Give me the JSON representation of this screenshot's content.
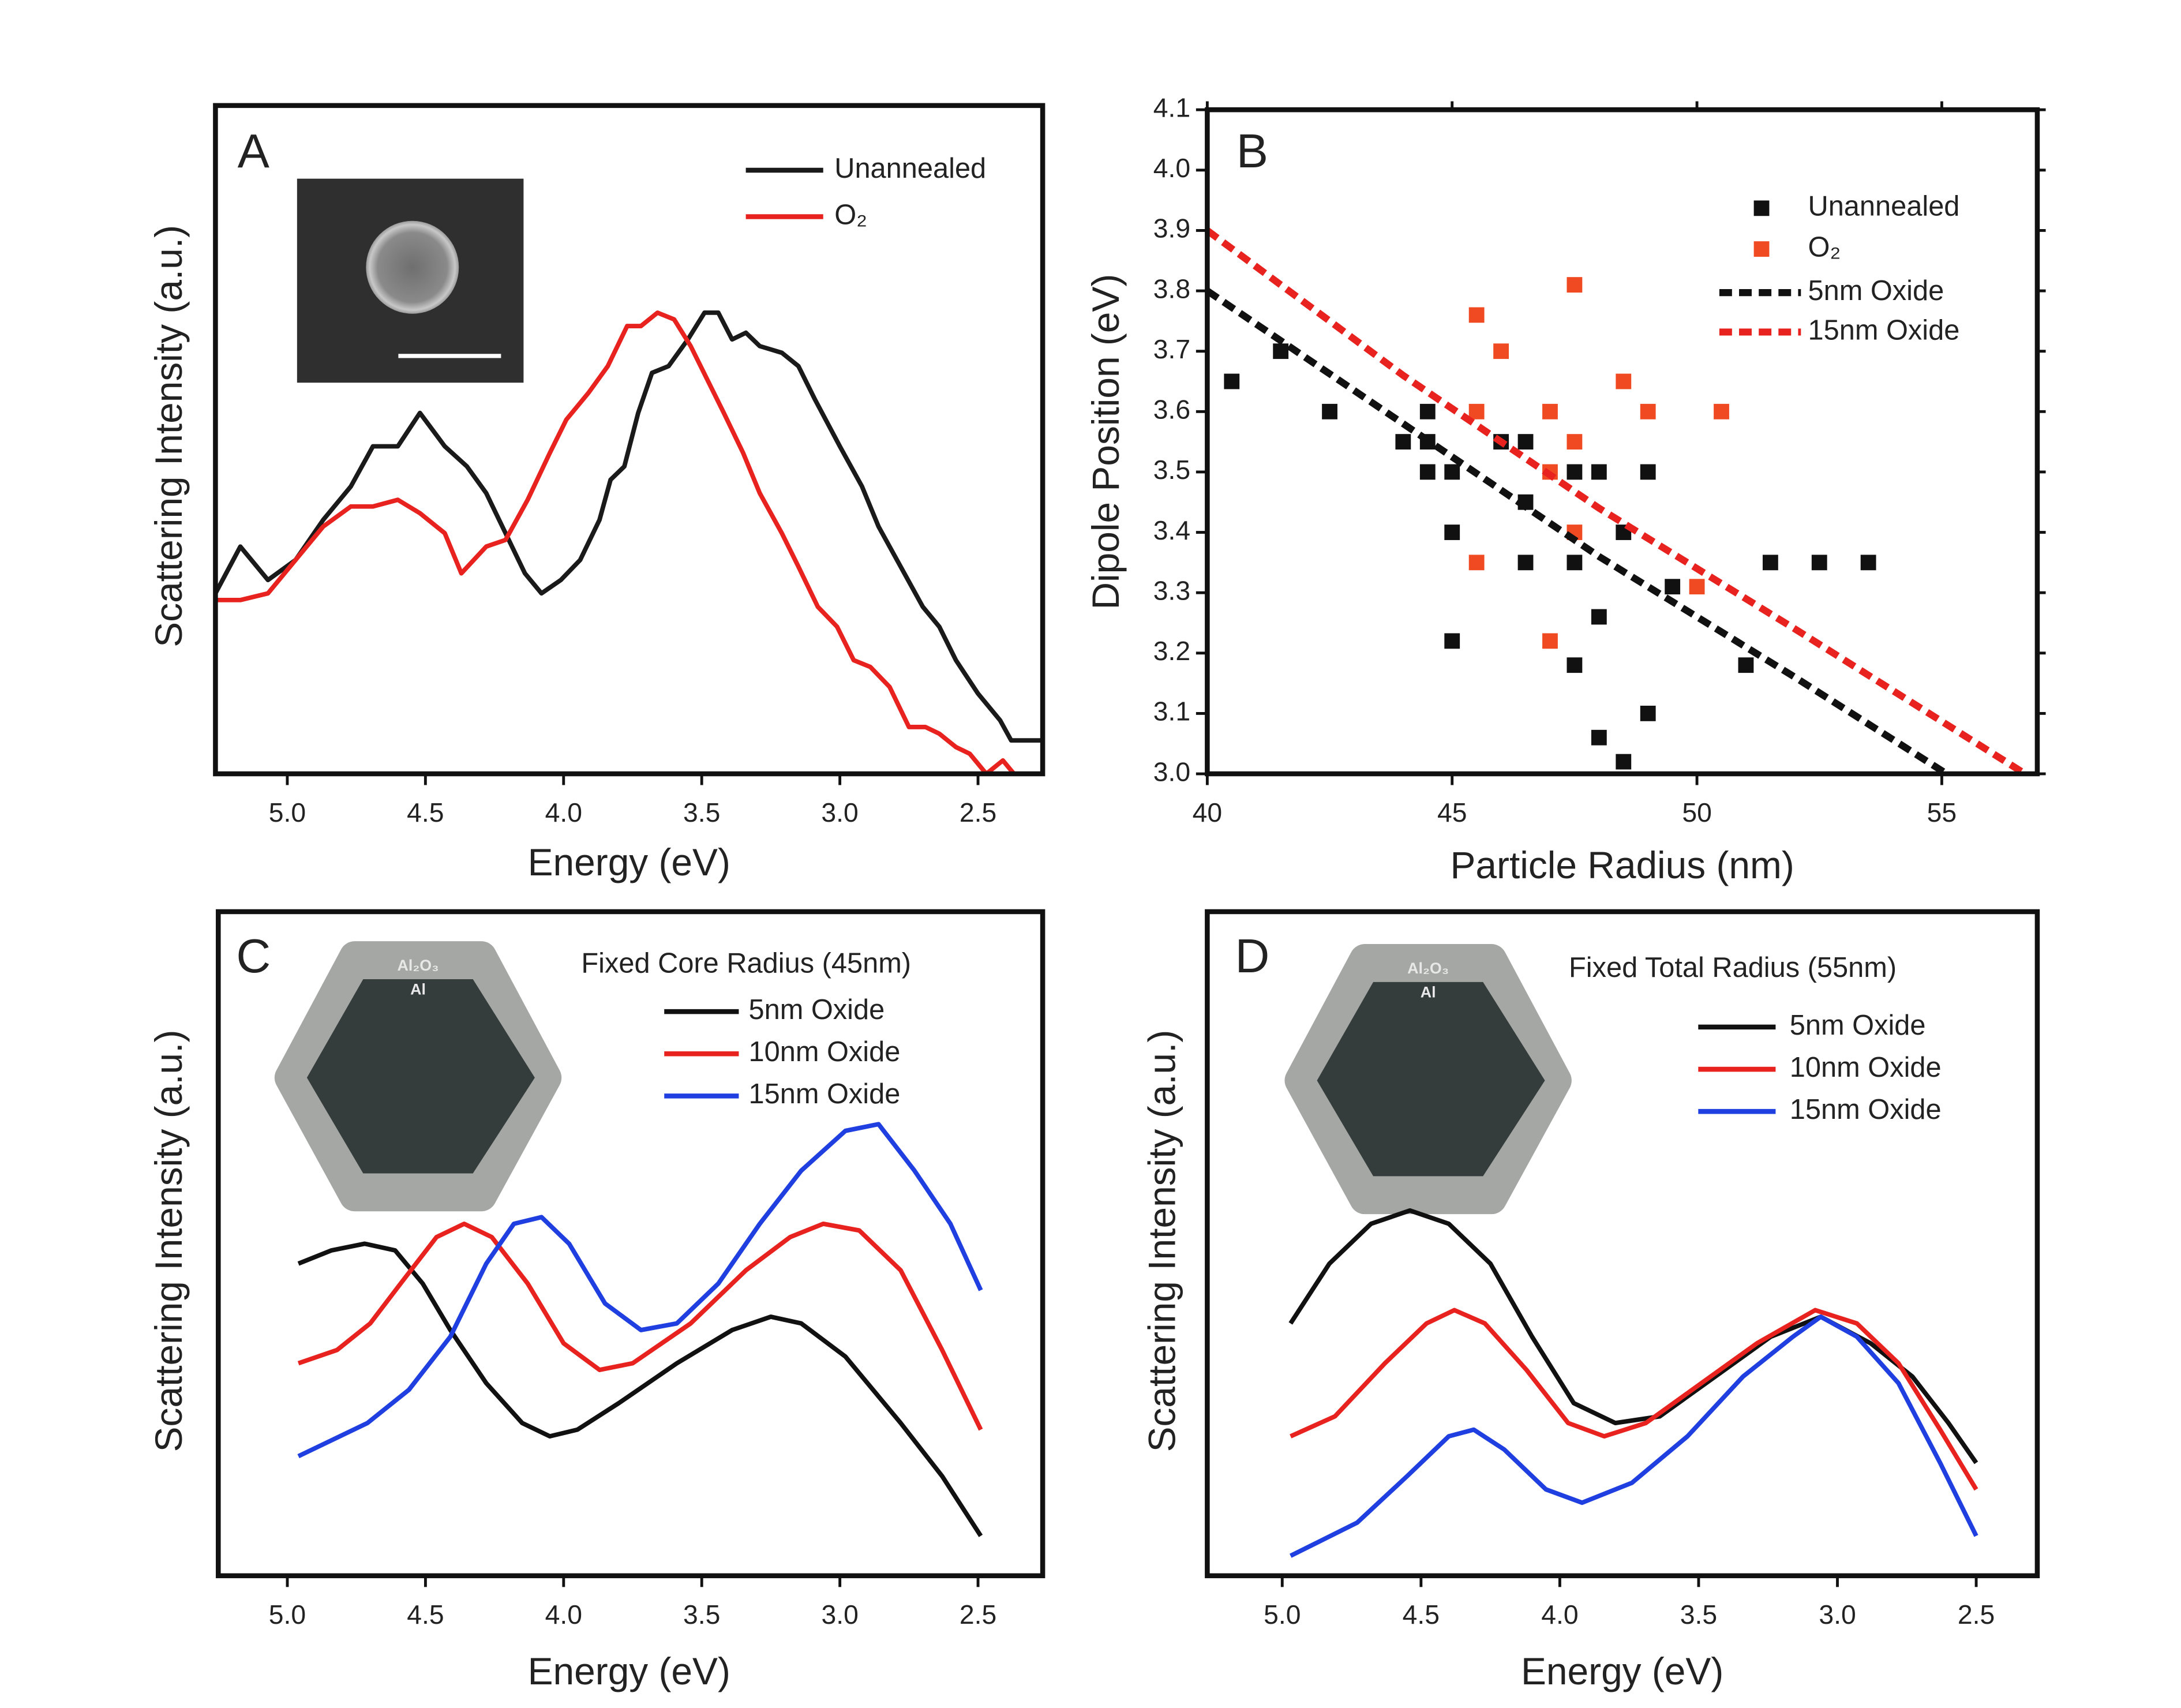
{
  "chart_data": [
    {
      "type": "line",
      "label": "A",
      "xlabel": "Energy (eV)",
      "ylabel": "Scattering Intensity (a.u.)",
      "xlim": [
        5.26,
        2.266
      ],
      "xticks": [
        {
          "value": 5,
          "label": "5.0"
        },
        4.5,
        {
          "value": 4,
          "label": "4.0"
        },
        3.5,
        {
          "value": 3,
          "label": "3.0"
        },
        2.5
      ],
      "ylim": [
        0,
        1
      ],
      "series": [
        {
          "name": "Unannealed",
          "color": "#1a1a1a",
          "x": [
            5.26,
            5.17,
            5.07,
            4.97,
            4.87,
            4.77,
            4.69,
            4.6,
            4.52,
            4.43,
            4.35,
            4.28,
            4.21,
            4.14,
            4.08,
            4.01,
            3.94,
            3.87,
            3.83,
            3.78,
            3.73,
            3.68,
            3.62,
            3.55,
            3.49,
            3.44,
            3.39,
            3.34,
            3.29,
            3.21,
            3.15,
            3.09,
            3.0,
            2.92,
            2.86,
            2.78,
            2.7,
            2.64,
            2.58,
            2.5,
            2.42,
            2.38,
            2.32,
            2.27
          ],
          "values": [
            0.27,
            0.34,
            0.29,
            0.32,
            0.38,
            0.43,
            0.49,
            0.49,
            0.54,
            0.49,
            0.46,
            0.42,
            0.36,
            0.3,
            0.27,
            0.29,
            0.32,
            0.38,
            0.44,
            0.46,
            0.54,
            0.6,
            0.61,
            0.65,
            0.69,
            0.69,
            0.65,
            0.66,
            0.64,
            0.63,
            0.61,
            0.56,
            0.49,
            0.43,
            0.37,
            0.31,
            0.25,
            0.22,
            0.17,
            0.12,
            0.08,
            0.05,
            0.05,
            0.05
          ]
        },
        {
          "name": "O₂",
          "color": "#e8231f",
          "x": [
            5.26,
            5.17,
            5.07,
            4.97,
            4.87,
            4.77,
            4.69,
            4.6,
            4.52,
            4.43,
            4.37,
            4.28,
            4.21,
            4.13,
            4.05,
            3.99,
            3.91,
            3.84,
            3.77,
            3.72,
            3.66,
            3.6,
            3.54,
            3.48,
            3.42,
            3.35,
            3.29,
            3.21,
            3.15,
            3.08,
            3.01,
            2.95,
            2.89,
            2.82,
            2.75,
            2.69,
            2.64,
            2.58,
            2.53,
            2.47,
            2.41,
            2.37
          ],
          "values": [
            0.26,
            0.26,
            0.27,
            0.32,
            0.37,
            0.4,
            0.4,
            0.41,
            0.39,
            0.36,
            0.3,
            0.34,
            0.35,
            0.41,
            0.48,
            0.53,
            0.57,
            0.61,
            0.67,
            0.67,
            0.69,
            0.68,
            0.64,
            0.59,
            0.54,
            0.48,
            0.42,
            0.36,
            0.31,
            0.25,
            0.22,
            0.17,
            0.16,
            0.13,
            0.07,
            0.07,
            0.06,
            0.04,
            0.03,
            0,
            0.02,
            0
          ]
        }
      ]
    },
    {
      "type": "scatter",
      "label": "B",
      "xlabel": "Particle Radius (nm)",
      "ylabel": "Dipole Position (eV)",
      "xlim": [
        40,
        56.95
      ],
      "xticks": [
        40,
        45,
        50,
        55
      ],
      "ylim": [
        3.0,
        4.1
      ],
      "yticks": [
        {
          "value": 3,
          "label": "3.0"
        },
        3.1,
        3.2,
        3.3,
        3.4,
        3.5,
        3.6,
        3.7,
        3.8,
        3.9,
        {
          "value": 4,
          "label": "4.0"
        },
        4.1
      ],
      "series": [
        {
          "name": "Unannealed",
          "color": "#111111",
          "x": [
            40.5,
            41.5,
            42.5,
            44,
            44.5,
            44.5,
            44.5,
            45,
            45,
            45,
            46,
            46.5,
            46.5,
            46.5,
            47.5,
            47.5,
            47.5,
            48,
            48,
            48,
            48.5,
            48.5,
            49,
            49,
            49.5,
            51,
            51.5,
            52.5,
            53.5
          ],
          "values": [
            3.65,
            3.7,
            3.6,
            3.55,
            3.6,
            3.55,
            3.5,
            3.5,
            3.4,
            3.22,
            3.55,
            3.55,
            3.45,
            3.35,
            3.5,
            3.35,
            3.18,
            3.5,
            3.26,
            3.06,
            3.02,
            3.4,
            3.5,
            3.1,
            3.31,
            3.18,
            3.35,
            3.35,
            3.35
          ]
        },
        {
          "name": "O₂",
          "color": "#f04a23",
          "x": [
            45.5,
            46,
            47.5,
            45.5,
            47,
            47.5,
            47,
            47.5,
            45.5,
            47,
            48.5,
            49,
            50.5,
            50
          ],
          "values": [
            3.76,
            3.7,
            3.81,
            3.6,
            3.6,
            3.55,
            3.5,
            3.4,
            3.35,
            3.22,
            3.65,
            3.6,
            3.6,
            3.31
          ]
        },
        {
          "name": "5nm Oxide",
          "color": "#111111",
          "line_style": "dashed",
          "x": [
            40,
            44,
            48,
            52,
            55.1
          ],
          "values": [
            3.8,
            3.58,
            3.36,
            3.16,
            3.0
          ]
        },
        {
          "name": "15nm Oxide",
          "color": "#e8231f",
          "line_style": "dashed",
          "x": [
            40,
            44,
            48,
            52,
            56.7
          ],
          "values": [
            3.9,
            3.66,
            3.44,
            3.24,
            3.0
          ]
        }
      ]
    },
    {
      "type": "line",
      "label": "C",
      "xlabel": "Energy (eV)",
      "ylabel": "Scattering Intensity (a.u.)",
      "annotation": "Fixed Core Radius (45nm)",
      "inset_labels": [
        "Al₂O₃",
        "Al"
      ],
      "xlim": [
        5.25,
        2.266
      ],
      "xticks": [
        {
          "value": 5,
          "label": "5.0"
        },
        4.5,
        {
          "value": 4,
          "label": "4.0"
        },
        3.5,
        {
          "value": 3,
          "label": "3.0"
        },
        2.5
      ],
      "ylim": [
        0,
        1
      ],
      "series": [
        {
          "name": "5nm Oxide",
          "color": "#111111",
          "x": [
            4.96,
            4.84,
            4.72,
            4.61,
            4.51,
            4.41,
            4.28,
            4.15,
            4.05,
            3.95,
            3.8,
            3.59,
            3.39,
            3.25,
            3.14,
            2.98,
            2.78,
            2.63,
            2.49
          ],
          "values": [
            0.47,
            0.49,
            0.5,
            0.49,
            0.44,
            0.37,
            0.29,
            0.23,
            0.21,
            0.22,
            0.26,
            0.32,
            0.37,
            0.39,
            0.38,
            0.33,
            0.23,
            0.15,
            0.06
          ]
        },
        {
          "name": "10nm Oxide",
          "color": "#e8231f",
          "x": [
            4.96,
            4.82,
            4.7,
            4.59,
            4.46,
            4.36,
            4.26,
            4.13,
            4.0,
            3.87,
            3.75,
            3.54,
            3.34,
            3.18,
            3.06,
            2.93,
            2.78,
            2.63,
            2.49
          ],
          "values": [
            0.32,
            0.34,
            0.38,
            0.44,
            0.51,
            0.53,
            0.51,
            0.44,
            0.35,
            0.31,
            0.32,
            0.38,
            0.46,
            0.51,
            0.53,
            0.52,
            0.46,
            0.34,
            0.22
          ]
        },
        {
          "name": "15nm Oxide",
          "color": "#1f3fe0",
          "x": [
            4.96,
            4.71,
            4.56,
            4.41,
            4.28,
            4.18,
            4.08,
            3.98,
            3.85,
            3.72,
            3.59,
            3.44,
            3.29,
            3.14,
            2.98,
            2.86,
            2.73,
            2.6,
            2.49
          ],
          "values": [
            0.18,
            0.23,
            0.28,
            0.36,
            0.47,
            0.53,
            0.54,
            0.5,
            0.41,
            0.37,
            0.38,
            0.44,
            0.53,
            0.61,
            0.67,
            0.68,
            0.61,
            0.53,
            0.43
          ]
        }
      ]
    },
    {
      "type": "line",
      "label": "D",
      "xlabel": "Energy (eV)",
      "ylabel": "Scattering Intensity (a.u.)",
      "annotation": "Fixed Total Radius (55nm)",
      "inset_labels": [
        "Al₂O₃",
        "Al"
      ],
      "xlim": [
        5.27,
        2.28
      ],
      "xticks": [
        {
          "value": 5,
          "label": "5.0"
        },
        4.5,
        {
          "value": 4,
          "label": "4.0"
        },
        3.5,
        {
          "value": 3,
          "label": "3.0"
        },
        2.5
      ],
      "ylim": [
        0,
        1
      ],
      "series": [
        {
          "name": "5nm Oxide",
          "color": "#111111",
          "x": [
            4.97,
            4.83,
            4.68,
            4.54,
            4.4,
            4.25,
            4.1,
            3.95,
            3.8,
            3.64,
            3.44,
            3.24,
            3.06,
            2.88,
            2.73,
            2.6,
            2.5
          ],
          "values": [
            0.38,
            0.47,
            0.53,
            0.55,
            0.53,
            0.47,
            0.36,
            0.26,
            0.23,
            0.24,
            0.3,
            0.36,
            0.39,
            0.35,
            0.3,
            0.23,
            0.17
          ]
        },
        {
          "name": "10nm Oxide",
          "color": "#e8231f",
          "x": [
            4.97,
            4.81,
            4.63,
            4.48,
            4.38,
            4.27,
            4.12,
            3.97,
            3.84,
            3.69,
            3.49,
            3.29,
            3.08,
            2.93,
            2.78,
            2.63,
            2.5
          ],
          "values": [
            0.21,
            0.24,
            0.32,
            0.38,
            0.4,
            0.38,
            0.31,
            0.23,
            0.21,
            0.23,
            0.29,
            0.35,
            0.4,
            0.38,
            0.32,
            0.22,
            0.13
          ]
        },
        {
          "name": "15nm Oxide",
          "color": "#1f3fe0",
          "x": [
            4.97,
            4.73,
            4.55,
            4.4,
            4.31,
            4.2,
            4.05,
            3.92,
            3.74,
            3.54,
            3.34,
            3.16,
            3.06,
            2.93,
            2.78,
            2.63,
            2.5
          ],
          "values": [
            0.03,
            0.08,
            0.15,
            0.21,
            0.22,
            0.19,
            0.13,
            0.11,
            0.14,
            0.21,
            0.3,
            0.36,
            0.39,
            0.36,
            0.29,
            0.17,
            0.06
          ]
        }
      ]
    }
  ]
}
